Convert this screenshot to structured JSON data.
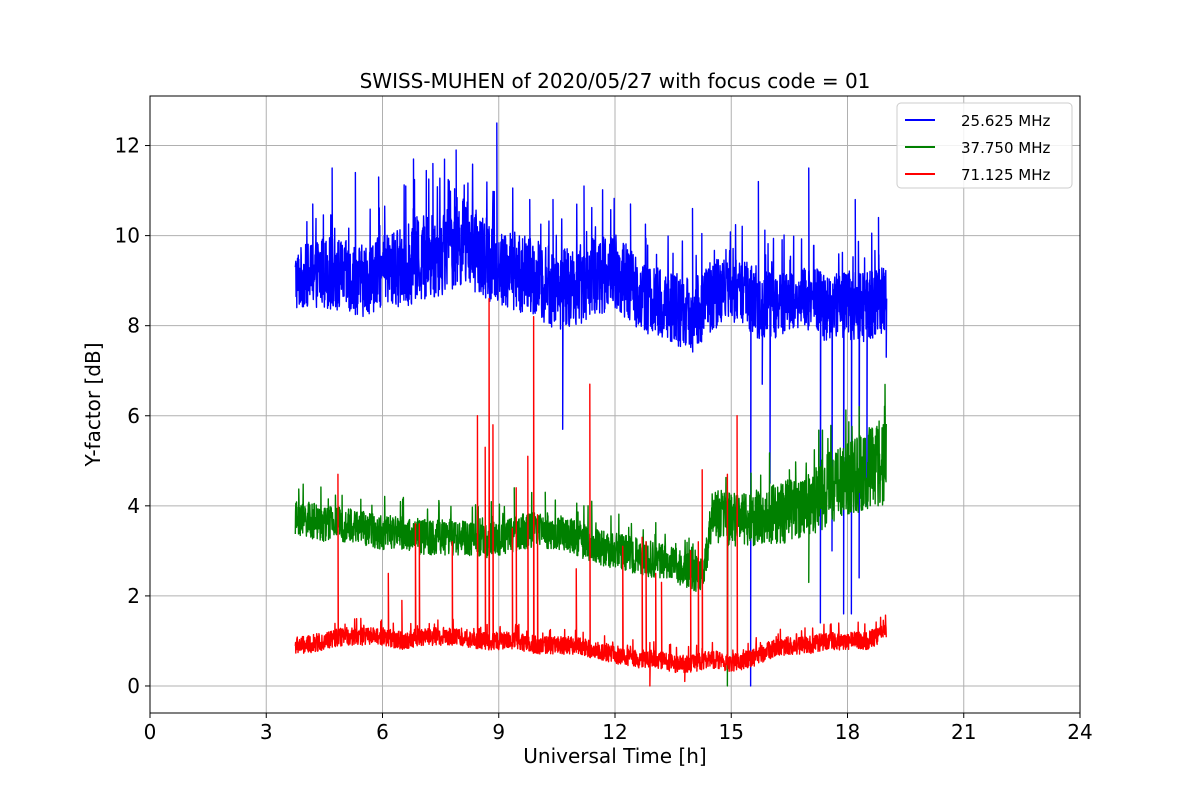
{
  "chart_data": {
    "type": "line",
    "title": "SWISS-MUHEN of 2020/05/27 with focus code = 01",
    "xlabel": "Universal Time [h]",
    "ylabel": "Y-factor [dB]",
    "xlim": [
      0,
      24
    ],
    "ylim": [
      -0.6,
      13.1
    ],
    "xticks": [
      0,
      3,
      6,
      9,
      12,
      15,
      18,
      21,
      24
    ],
    "yticks": [
      0,
      2,
      4,
      6,
      8,
      10,
      12
    ],
    "xtick_labels": [
      "0",
      "3",
      "6",
      "9",
      "12",
      "15",
      "18",
      "21",
      "24"
    ],
    "ytick_labels": [
      "0",
      "2",
      "4",
      "6",
      "8",
      "10",
      "12"
    ],
    "grid": true,
    "legend_position": "top-right",
    "x_range_of_data": [
      3.75,
      19.0
    ],
    "series": [
      {
        "name": "25.625 MHz",
        "color": "#0000ff",
        "x": [
          3.75,
          4.0,
          4.5,
          5.0,
          5.5,
          6.0,
          6.5,
          7.0,
          7.5,
          8.0,
          8.5,
          9.0,
          9.5,
          10.0,
          10.5,
          11.0,
          11.5,
          12.0,
          12.5,
          13.0,
          13.5,
          14.0,
          14.5,
          15.0,
          15.5,
          16.0,
          16.5,
          17.0,
          17.5,
          18.0,
          18.5,
          19.0
        ],
        "y": [
          9.0,
          9.1,
          9.2,
          9.1,
          9.0,
          9.2,
          9.3,
          9.5,
          9.6,
          9.9,
          9.6,
          9.3,
          9.2,
          9.0,
          8.8,
          8.9,
          9.1,
          9.2,
          8.8,
          8.5,
          8.4,
          8.2,
          8.7,
          8.8,
          8.6,
          8.4,
          8.6,
          8.6,
          8.4,
          8.5,
          8.4,
          8.6
        ],
        "band": [
          0.7,
          0.7,
          0.8,
          0.8,
          0.8,
          0.8,
          0.9,
          1.0,
          1.0,
          1.0,
          0.9,
          0.9,
          0.9,
          0.9,
          0.9,
          0.9,
          0.9,
          0.9,
          0.8,
          0.8,
          0.8,
          0.8,
          0.8,
          0.7,
          0.8,
          0.8,
          0.7,
          0.7,
          0.8,
          0.8,
          0.8,
          0.8
        ],
        "spikes": [
          [
            4.2,
            10.7
          ],
          [
            4.7,
            11.5
          ],
          [
            5.3,
            11.4
          ],
          [
            5.9,
            11.3
          ],
          [
            6.6,
            11.1
          ],
          [
            6.8,
            11.7
          ],
          [
            7.3,
            11.6
          ],
          [
            7.9,
            11.9
          ],
          [
            8.95,
            12.5
          ],
          [
            9.8,
            10.8
          ],
          [
            10.4,
            10.8
          ],
          [
            11.2,
            11.1
          ],
          [
            12.4,
            10.7
          ],
          [
            14.0,
            10.6
          ],
          [
            15.7,
            11.2
          ],
          [
            17.0,
            11.5
          ],
          [
            18.2,
            10.8
          ],
          [
            18.8,
            10.4
          ]
        ],
        "dips": [
          [
            10.65,
            5.7
          ],
          [
            15.5,
            0.0
          ],
          [
            15.8,
            6.7
          ],
          [
            16.0,
            4.5
          ],
          [
            17.3,
            1.4
          ],
          [
            17.6,
            3.0
          ],
          [
            17.9,
            1.6
          ],
          [
            18.1,
            1.6
          ],
          [
            18.3,
            2.4
          ],
          [
            18.5,
            4.0
          ],
          [
            19.0,
            7.3
          ]
        ]
      },
      {
        "name": "37.750 MHz",
        "color": "#008000",
        "x": [
          3.75,
          4.0,
          4.5,
          5.0,
          5.5,
          6.0,
          6.5,
          7.0,
          7.5,
          8.0,
          8.5,
          9.0,
          9.5,
          10.0,
          10.5,
          11.0,
          11.5,
          12.0,
          12.5,
          13.0,
          13.5,
          14.0,
          14.3,
          14.5,
          15.0,
          15.5,
          16.0,
          16.5,
          17.0,
          17.3,
          17.5,
          18.0,
          18.5,
          19.0
        ],
        "y": [
          3.7,
          3.7,
          3.6,
          3.6,
          3.5,
          3.4,
          3.4,
          3.3,
          3.3,
          3.3,
          3.2,
          3.3,
          3.4,
          3.5,
          3.4,
          3.3,
          3.1,
          3.0,
          2.9,
          2.8,
          2.7,
          2.5,
          2.5,
          3.8,
          3.7,
          3.7,
          3.8,
          3.9,
          4.0,
          4.2,
          4.4,
          4.6,
          4.8,
          5.0
        ],
        "band": [
          0.4,
          0.4,
          0.4,
          0.4,
          0.4,
          0.4,
          0.4,
          0.4,
          0.4,
          0.4,
          0.4,
          0.4,
          0.4,
          0.4,
          0.4,
          0.4,
          0.4,
          0.4,
          0.4,
          0.4,
          0.4,
          0.4,
          0.4,
          0.6,
          0.6,
          0.6,
          0.7,
          0.7,
          0.7,
          0.8,
          0.8,
          0.8,
          0.9,
          1.0
        ],
        "spikes": [
          [
            9.4,
            4.4
          ],
          [
            10.2,
            4.3
          ],
          [
            11.4,
            4.1
          ],
          [
            16.5,
            4.8
          ],
          [
            18.3,
            6.2
          ]
        ],
        "dips": [
          [
            14.9,
            0.0
          ],
          [
            17.0,
            2.3
          ]
        ]
      },
      {
        "name": "71.125 MHz",
        "color": "#ff0000",
        "x": [
          3.75,
          4.0,
          4.5,
          5.0,
          5.5,
          6.0,
          6.5,
          7.0,
          7.5,
          8.0,
          8.5,
          9.0,
          9.5,
          10.0,
          10.5,
          11.0,
          11.5,
          12.0,
          12.5,
          13.0,
          13.5,
          14.0,
          14.5,
          15.0,
          15.5,
          16.0,
          16.5,
          17.0,
          17.5,
          18.0,
          18.5,
          19.0
        ],
        "y": [
          0.9,
          0.9,
          1.0,
          1.1,
          1.1,
          1.1,
          1.0,
          1.1,
          1.1,
          1.1,
          1.0,
          1.0,
          1.0,
          0.9,
          0.9,
          0.9,
          0.8,
          0.7,
          0.6,
          0.6,
          0.5,
          0.5,
          0.6,
          0.5,
          0.6,
          0.8,
          0.9,
          0.9,
          1.0,
          1.0,
          1.0,
          1.2
        ],
        "band": [
          0.2,
          0.2,
          0.2,
          0.2,
          0.2,
          0.2,
          0.2,
          0.2,
          0.2,
          0.2,
          0.2,
          0.2,
          0.2,
          0.2,
          0.2,
          0.2,
          0.2,
          0.2,
          0.2,
          0.2,
          0.2,
          0.2,
          0.2,
          0.2,
          0.2,
          0.2,
          0.2,
          0.2,
          0.2,
          0.2,
          0.2,
          0.2
        ],
        "spikes": [
          [
            4.85,
            4.7
          ],
          [
            6.15,
            2.5
          ],
          [
            6.5,
            1.9
          ],
          [
            6.85,
            3.6
          ],
          [
            6.95,
            3.6
          ],
          [
            7.8,
            3.2
          ],
          [
            8.45,
            6.0
          ],
          [
            8.65,
            5.3
          ],
          [
            8.75,
            8.6
          ],
          [
            8.85,
            5.8
          ],
          [
            9.35,
            3.5
          ],
          [
            9.45,
            4.4
          ],
          [
            9.75,
            5.1
          ],
          [
            9.9,
            8.2
          ],
          [
            10.0,
            3.8
          ],
          [
            11.0,
            2.6
          ],
          [
            11.35,
            6.7
          ],
          [
            12.2,
            3.1
          ],
          [
            12.7,
            3.3
          ],
          [
            12.8,
            3.2
          ],
          [
            13.05,
            2.5
          ],
          [
            13.2,
            2.3
          ],
          [
            13.95,
            3.0
          ],
          [
            14.15,
            3.2
          ],
          [
            14.25,
            4.8
          ],
          [
            14.9,
            4.7
          ],
          [
            15.15,
            6.0
          ]
        ],
        "dips": [
          [
            12.9,
            0.0
          ],
          [
            13.8,
            0.1
          ]
        ]
      }
    ]
  }
}
